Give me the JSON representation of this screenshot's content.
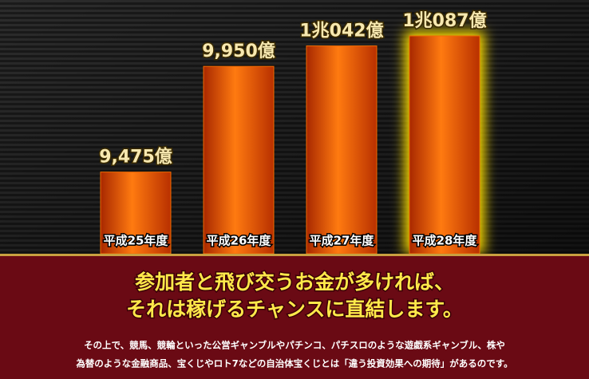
{
  "chart_data": {
    "type": "bar",
    "categories": [
      "平成25年度",
      "平成26年度",
      "平成27年度",
      "平成28年度"
    ],
    "values": [
      9475,
      9950,
      10042,
      10087
    ],
    "value_labels": [
      "9,475億",
      "9,950億",
      "1兆042億",
      "1兆087億"
    ],
    "color": "#f06a00",
    "highlight_color": "#ffe100"
  },
  "panel": {
    "headline": [
      "参加者と飛び交うお金が多ければ、",
      "それは稼げるチャンスに直結します。"
    ],
    "body": [
      "その上で、競馬、競輪といった公営ギャンブルやパチンコ、パチスロのような遊戯系ギャンブル、株や",
      "為替のような金融商品、宝くじやロト7などの自治体宝くじとは「違う投資効果への期待」があるのです。"
    ]
  }
}
